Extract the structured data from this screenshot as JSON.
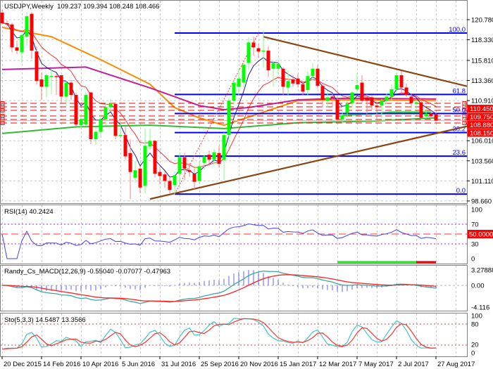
{
  "header": {
    "symbol_timeframe": "USDJPY,Weekly",
    "ohlc": "109.237 109.394 108.248 108.466"
  },
  "colors": {
    "bull": "#00ff00",
    "bear": "#ff0000",
    "fib": "#0000ff",
    "trendline": "#8b4513",
    "level": "#ff0000",
    "rsi": "#4040ff",
    "macd_main": "#3aa89c",
    "macd_signal": "#ff2020",
    "macd_hist": "#6060ff",
    "sto_main": "#40c8c0",
    "sto_signal": "#ff3030"
  },
  "chart_data": [
    {
      "type": "candlestick",
      "title": "USDJPY,Weekly 109.237 109.394 108.248 108.466",
      "ylim": [
        98.66,
        121.8
      ],
      "y_ticks": [
        "120.780",
        "118.330",
        "115.810",
        "113.360",
        "110.910",
        "106.010",
        "103.560",
        "101.110",
        "98.660"
      ],
      "x_ticks": [
        "20 Dec 2015",
        "14 Feb 2016",
        "10 Apr 2016",
        "5 Jun 2016",
        "31 Jul 2016",
        "25 Sep 2016",
        "20 Nov 2016",
        "15 Jan 2017",
        "12 Mar 2017",
        "7 May 2017",
        "2 Jul 2017",
        "27 Aug 2017"
      ],
      "grid": true,
      "candles": [
        [
          "2015-12-20",
          121.64,
          122.0,
          120.2,
          120.35
        ],
        [
          "2015-12-27",
          120.35,
          120.7,
          119.9,
          120.2
        ],
        [
          "2016-01-03",
          120.2,
          120.4,
          116.8,
          117.4
        ],
        [
          "2016-01-10",
          117.4,
          118.2,
          116.6,
          117.0
        ],
        [
          "2016-01-17",
          116.8,
          119.1,
          115.5,
          118.9
        ],
        [
          "2016-01-24",
          118.7,
          121.7,
          117.6,
          121.2
        ],
        [
          "2016-01-31",
          121.5,
          121.7,
          116.0,
          117.0
        ],
        [
          "2016-02-07",
          116.9,
          117.5,
          112.9,
          113.3
        ],
        [
          "2016-02-14",
          113.5,
          114.3,
          111.0,
          112.6
        ],
        [
          "2016-02-21",
          112.6,
          114.2,
          111.3,
          114.0
        ],
        [
          "2016-02-28",
          113.8,
          114.8,
          111.7,
          113.9
        ],
        [
          "2016-03-06",
          113.9,
          114.2,
          111.6,
          113.8
        ],
        [
          "2016-03-13",
          114.0,
          114.0,
          110.5,
          111.4
        ],
        [
          "2016-03-20",
          111.4,
          113.3,
          110.3,
          113.1
        ],
        [
          "2016-03-27",
          113.1,
          113.4,
          111.0,
          111.6
        ],
        [
          "2016-04-03",
          111.6,
          111.9,
          107.7,
          108.0
        ],
        [
          "2016-04-10",
          107.9,
          109.3,
          107.6,
          108.6
        ],
        [
          "2016-04-17",
          108.0,
          111.9,
          107.9,
          111.6
        ],
        [
          "2016-04-24",
          111.9,
          112.0,
          105.6,
          106.2
        ],
        [
          "2016-05-01",
          106.2,
          107.6,
          105.5,
          107.1
        ],
        [
          "2016-05-08",
          107.1,
          109.2,
          106.5,
          108.6
        ],
        [
          "2016-05-15",
          108.6,
          110.5,
          107.9,
          110.1
        ],
        [
          "2016-05-22",
          110.1,
          111.1,
          109.7,
          110.5
        ],
        [
          "2016-05-29",
          110.5,
          110.7,
          106.2,
          106.6
        ],
        [
          "2016-06-05",
          106.6,
          108.5,
          106.3,
          106.7
        ],
        [
          "2016-06-12",
          106.7,
          107.8,
          103.7,
          104.1
        ],
        [
          "2016-06-19",
          104.5,
          106.2,
          98.9,
          102.2
        ],
        [
          "2016-06-26",
          101.5,
          103.5,
          100.9,
          102.4
        ],
        [
          "2016-07-03",
          102.6,
          102.9,
          99.6,
          100.3
        ],
        [
          "2016-07-10",
          100.5,
          107.5,
          99.6,
          105.4
        ],
        [
          "2016-07-17",
          105.3,
          107.5,
          104.9,
          106.0
        ],
        [
          "2016-07-24",
          106.0,
          106.1,
          101.5,
          102.0
        ],
        [
          "2016-07-31",
          102.2,
          102.8,
          100.7,
          101.7
        ],
        [
          "2016-08-07",
          101.9,
          102.3,
          100.3,
          101.1
        ],
        [
          "2016-08-14",
          101.1,
          101.6,
          99.6,
          100.0
        ],
        [
          "2016-08-21",
          100.6,
          102.3,
          99.5,
          101.8
        ],
        [
          "2016-08-28",
          102.0,
          104.5,
          100.5,
          104.0
        ],
        [
          "2016-09-04",
          104.0,
          104.5,
          101.2,
          102.6
        ],
        [
          "2016-09-11",
          102.4,
          103.3,
          101.6,
          102.2
        ],
        [
          "2016-09-18",
          102.0,
          102.6,
          100.1,
          101.0
        ],
        [
          "2016-09-25",
          101.1,
          103.5,
          100.8,
          102.9
        ],
        [
          "2016-10-02",
          103.3,
          104.3,
          102.5,
          104.1
        ],
        [
          "2016-10-09",
          104.3,
          104.8,
          103.0,
          103.7
        ],
        [
          "2016-10-16",
          103.7,
          105.0,
          103.0,
          104.6
        ],
        [
          "2016-10-23",
          104.5,
          105.4,
          102.7,
          103.2
        ],
        [
          "2016-10-30",
          103.7,
          107.0,
          101.2,
          106.7
        ],
        [
          "2016-11-06",
          106.7,
          111.2,
          105.0,
          110.9
        ],
        [
          "2016-11-13",
          110.9,
          113.5,
          110.4,
          113.1
        ],
        [
          "2016-11-20",
          112.6,
          114.9,
          111.5,
          113.6
        ],
        [
          "2016-11-27",
          113.1,
          115.6,
          112.5,
          115.3
        ],
        [
          "2016-12-04",
          115.5,
          118.6,
          114.7,
          118.0
        ],
        [
          "2016-12-11",
          118.0,
          118.7,
          116.4,
          117.4
        ],
        [
          "2016-12-18",
          117.3,
          117.8,
          116.1,
          116.9
        ],
        [
          "2016-12-25",
          117.0,
          119.5,
          114.9,
          117.0
        ],
        [
          "2017-01-01",
          117.0,
          117.5,
          113.8,
          114.6
        ],
        [
          "2017-01-08",
          114.8,
          115.7,
          112.6,
          115.5
        ],
        [
          "2017-01-15",
          114.8,
          115.6,
          114.2,
          115.4
        ],
        [
          "2017-01-22",
          114.8,
          115.0,
          111.6,
          112.6
        ],
        [
          "2017-01-29",
          112.5,
          114.6,
          111.6,
          113.3
        ],
        [
          "2017-02-05",
          113.5,
          114.0,
          112.6,
          113.0
        ],
        [
          "2017-02-12",
          113.6,
          114.2,
          112.5,
          112.9
        ],
        [
          "2017-02-19",
          112.9,
          113.3,
          111.6,
          112.0
        ],
        [
          "2017-02-26",
          112.2,
          114.5,
          111.5,
          113.9
        ],
        [
          "2017-03-05",
          113.9,
          115.5,
          113.3,
          114.8
        ],
        [
          "2017-03-12",
          114.8,
          115.2,
          112.4,
          112.7
        ],
        [
          "2017-03-19",
          112.7,
          113.0,
          110.1,
          111.0
        ],
        [
          "2017-03-26",
          110.9,
          112.1,
          110.1,
          111.3
        ],
        [
          "2017-04-02",
          111.4,
          111.8,
          110.1,
          111.2
        ],
        [
          "2017-04-09",
          111.0,
          111.5,
          108.3,
          108.6
        ],
        [
          "2017-04-16",
          108.6,
          109.7,
          108.1,
          109.1
        ],
        [
          "2017-04-23",
          109.4,
          110.9,
          108.8,
          110.5
        ],
        [
          "2017-04-30",
          110.6,
          112.1,
          110.1,
          111.9
        ],
        [
          "2017-05-07",
          112.3,
          114.3,
          111.8,
          112.8
        ],
        [
          "2017-05-14",
          113.1,
          114.0,
          110.6,
          110.9
        ],
        [
          "2017-05-21",
          111.3,
          111.7,
          109.1,
          110.9
        ],
        [
          "2017-05-28",
          111.3,
          111.6,
          109.8,
          110.3
        ],
        [
          "2017-06-04",
          110.3,
          110.8,
          108.7,
          110.1
        ],
        [
          "2017-06-11",
          110.3,
          111.1,
          108.8,
          110.9
        ],
        [
          "2017-06-18",
          110.9,
          111.8,
          110.5,
          111.4
        ],
        [
          "2017-06-25",
          111.4,
          112.9,
          110.9,
          112.3
        ],
        [
          "2017-07-02",
          112.3,
          114.3,
          112.0,
          114.0
        ],
        [
          "2017-07-09",
          114.0,
          114.5,
          111.8,
          112.5
        ],
        [
          "2017-07-16",
          112.5,
          113.0,
          111.4,
          111.6
        ],
        [
          "2017-07-23",
          111.4,
          111.7,
          110.0,
          110.6
        ],
        [
          "2017-07-30",
          110.7,
          111.0,
          109.9,
          110.7
        ],
        [
          "2017-08-06",
          110.7,
          111.0,
          108.6,
          108.8
        ],
        [
          "2017-08-13",
          109.0,
          110.0,
          108.7,
          109.3
        ],
        [
          "2017-08-20",
          109.3,
          109.6,
          108.6,
          109.0
        ],
        [
          "2017-08-27",
          109.237,
          109.394,
          108.248,
          108.466
        ]
      ],
      "moving_averages": [
        {
          "color": "#ff8c00",
          "points": [
            [
              "2015-12-20",
              119.84
            ],
            [
              "2016-02-28",
              118.7
            ],
            [
              "2016-05-08",
              115.9
            ],
            [
              "2016-07-17",
              112.9
            ],
            [
              "2016-08-21",
              110.06
            ],
            [
              "2016-09-25",
              108.8
            ],
            [
              "2016-10-30",
              107.9
            ],
            [
              "2016-12-04",
              108.9
            ],
            [
              "2017-01-08",
              109.9
            ],
            [
              "2017-02-12",
              110.9
            ],
            [
              "2017-04-23",
              111.0
            ],
            [
              "2017-08-27",
              110.9
            ]
          ]
        },
        {
          "color": "#c0209a",
          "points": [
            [
              "2015-12-20",
              114.7
            ],
            [
              "2016-04-17",
              115.0
            ],
            [
              "2016-07-17",
              112.46
            ],
            [
              "2016-09-25",
              110.3
            ],
            [
              "2016-10-30",
              109.8
            ],
            [
              "2016-12-04",
              110.06
            ],
            [
              "2017-02-12",
              111.0
            ],
            [
              "2017-04-23",
              111.2
            ],
            [
              "2017-08-27",
              111.1
            ]
          ]
        },
        {
          "color": "#33bb33",
          "points": [
            [
              "2015-12-20",
              106.9
            ],
            [
              "2016-04-03",
              107.7
            ],
            [
              "2016-07-17",
              107.9
            ],
            [
              "2016-10-30",
              107.5
            ],
            [
              "2017-02-12",
              108.2
            ],
            [
              "2017-05-28",
              108.4
            ],
            [
              "2017-08-27",
              108.8
            ]
          ]
        },
        {
          "color": "#22ee22",
          "points": [
            [
              "2017-04-16",
              109.1
            ],
            [
              "2017-05-28",
              109.3
            ],
            [
              "2017-06-25",
              109.5
            ],
            [
              "2017-08-20",
              109.5
            ]
          ]
        }
      ],
      "trendlines": [
        {
          "from": [
            "2016-07-17",
            98.9
          ],
          "to": [
            "2017-08-27",
            106.9
          ],
          "extend": true
        },
        {
          "from": [
            "2016-12-25",
            118.7
          ],
          "to": [
            "2017-08-27",
            113.58
          ],
          "extend": true
        }
      ],
      "fib_anchor": {
        "from": [
          "2016-08-21",
          99.5
        ],
        "to": [
          "2016-12-18",
          119.15
        ]
      },
      "fibonacci": [
        {
          "label": "100.0",
          "price": 119.15
        },
        {
          "label": "61.8",
          "price": 111.66
        },
        {
          "label": "50.0",
          "price": 109.33
        },
        {
          "label": "38.2",
          "price": 107.0
        },
        {
          "label": "23.6",
          "price": 104.13
        },
        {
          "label": "0.0",
          "price": 99.5
        }
      ],
      "levels": [
        110.57,
        110.14,
        109.72,
        109.03,
        108.6,
        108.17
      ],
      "level_labels": [
        {
          "label": "110.450",
          "price": 110.45
        },
        {
          "label": "109.750",
          "price": 109.75
        },
        {
          "label": "108.880",
          "price": 108.88
        },
        {
          "label": "108.150",
          "price": 108.15
        }
      ],
      "last_price": 108.466
    },
    {
      "type": "line",
      "title": "RSI(14) 40.2424",
      "ylim": [
        0,
        100
      ],
      "y_ticks": [
        "100",
        "70",
        "30",
        "0"
      ],
      "levels": [
        70,
        30
      ],
      "mid_level": 50,
      "mid_label": "50.0000",
      "signal_bar": {
        "from": "2017-04-09",
        "switch": "2017-07-30",
        "to": "2017-08-27"
      }
    },
    {
      "type": "line",
      "title": "Randy_Cs_MACD(12,26,9) -0.55040 -0.07077 -0.47963",
      "y_ticks": [
        "3.27888",
        "0.00",
        "-4.116"
      ],
      "ylim": [
        -4.116,
        3.27888
      ]
    },
    {
      "type": "line",
      "title": "Sto(5,3,3) 14.5487 13.3566",
      "ylim": [
        0,
        100
      ],
      "y_ticks": [
        "100",
        "80",
        "20",
        "0"
      ],
      "levels": [
        80,
        20
      ]
    }
  ]
}
